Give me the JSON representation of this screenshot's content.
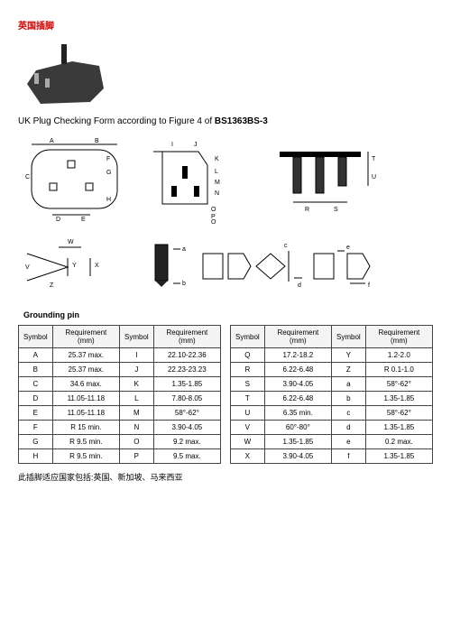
{
  "title_ch": "英国插脚",
  "form_line_pre": "UK Plug Checking Form according to Figure 4 of ",
  "form_line_bold": "BS1363BS-3",
  "grounding_label": "Grounding pin",
  "footer_ch": "此插脚适应国家包括:英国、新加坡、马来西亚",
  "headers": {
    "sym": "Symbol",
    "req": "Requirement (mm)"
  },
  "table1": {
    "rows": [
      {
        "s1": "A",
        "r1": "25.37 max.",
        "s2": "I",
        "r2": "22.10-22.36"
      },
      {
        "s1": "B",
        "r1": "25.37 max.",
        "s2": "J",
        "r2": "22.23-23.23"
      },
      {
        "s1": "C",
        "r1": "34.6 max.",
        "s2": "K",
        "r2": "1.35-1.85"
      },
      {
        "s1": "D",
        "r1": "11.05-11.18",
        "s2": "L",
        "r2": "7.80-8.05"
      },
      {
        "s1": "E",
        "r1": "11.05-11.18",
        "s2": "M",
        "r2": "58°-62°"
      },
      {
        "s1": "F",
        "r1": "R 15 min.",
        "s2": "N",
        "r2": "3.90-4.05"
      },
      {
        "s1": "G",
        "r1": "R 9.5 min.",
        "s2": "O",
        "r2": "9.2 max."
      },
      {
        "s1": "H",
        "r1": "R 9.5 min.",
        "s2": "P",
        "r2": "9.5 max."
      }
    ]
  },
  "table2": {
    "rows": [
      {
        "s1": "Q",
        "r1": "17.2-18.2",
        "s2": "Y",
        "r2": "1.2-2.0"
      },
      {
        "s1": "R",
        "r1": "6.22-6.48",
        "s2": "Z",
        "r2": "R 0.1-1.0"
      },
      {
        "s1": "S",
        "r1": "3.90-4.05",
        "s2": "a",
        "r2": "58°-62°"
      },
      {
        "s1": "T",
        "r1": "6.22-6.48",
        "s2": "b",
        "r2": "1.35-1.85"
      },
      {
        "s1": "U",
        "r1": "6.35 min.",
        "s2": "c",
        "r2": "58°-62°"
      },
      {
        "s1": "V",
        "r1": "60°-80°",
        "s2": "d",
        "r2": "1.35-1.85"
      },
      {
        "s1": "W",
        "r1": "1.35-1.85",
        "s2": "e",
        "r2": "0.2 max."
      },
      {
        "s1": "X",
        "r1": "3.90-4.05",
        "s2": "f",
        "r2": "1.35-1.85"
      }
    ]
  },
  "diag_labels": {
    "top_left": [
      "A",
      "B",
      "C",
      "D",
      "E",
      "F",
      "G",
      "H"
    ],
    "top_mid": [
      "I",
      "J",
      "K",
      "L",
      "M",
      "N",
      "O",
      "P",
      "Q"
    ],
    "top_right": [
      "R",
      "S",
      "T",
      "U"
    ],
    "bot": [
      "V",
      "W",
      "X",
      "Y",
      "Z",
      "a",
      "b",
      "c",
      "d",
      "e",
      "f"
    ]
  }
}
